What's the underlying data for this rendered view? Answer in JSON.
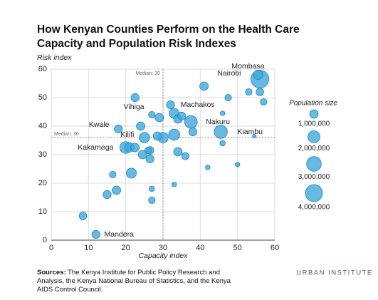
{
  "chart_data": {
    "type": "bubble",
    "title": [
      "How Kenyan Counties Perform on the Health Care",
      "Capacity and Population Risk Indexes"
    ],
    "x_label": "Capacity index",
    "y_label": "Risk index",
    "xlim": [
      0,
      60
    ],
    "xticks": [
      0,
      10,
      20,
      30,
      40,
      50,
      60
    ],
    "ylim": [
      0,
      60
    ],
    "yticks": [
      0,
      10,
      20,
      30,
      40,
      50,
      60
    ],
    "grid": true,
    "median_x": {
      "value": 30,
      "label": "Median: 30"
    },
    "median_y": {
      "value": 36,
      "label": "Median: 36"
    },
    "series": [
      {
        "color": "#3ea8dc",
        "x": [
          55.5,
          56,
          57,
          53,
          56,
          47.5,
          41,
          22.5,
          32,
          33,
          35,
          34,
          27,
          29,
          37.5,
          45.5,
          46,
          38,
          24,
          18,
          25,
          28.5,
          30,
          33,
          54.5,
          46,
          20,
          21,
          22.5,
          26,
          26.5,
          24.5,
          26.5,
          34,
          36,
          42,
          50,
          21.5,
          16.5,
          33,
          27,
          17.5,
          15,
          27,
          8.5,
          12
        ],
        "values": [
          58,
          56.5,
          48.5,
          52,
          52,
          50,
          54,
          50,
          47.5,
          44.5,
          43.5,
          42.5,
          44,
          43,
          41.5,
          38,
          44.5,
          38,
          40,
          39,
          36,
          36.5,
          36,
          37,
          36.5,
          34,
          32.5,
          32.5,
          32.5,
          31.5,
          31.5,
          30,
          28.5,
          31,
          29.5,
          25.5,
          26.5,
          23.5,
          23,
          19.5,
          18,
          17.5,
          16,
          14,
          8.5,
          2
        ],
        "sizes": [
          1200000,
          4400000,
          600000,
          600000,
          800000,
          600000,
          1000000,
          900000,
          900000,
          1400000,
          900000,
          1000000,
          600000,
          1000000,
          2200000,
          2400000,
          300000,
          900000,
          1000000,
          900000,
          1500000,
          1000000,
          1500000,
          1700000,
          200000,
          400000,
          1900000,
          1200000,
          1000000,
          600000,
          800000,
          1000000,
          900000,
          1000000,
          700000,
          300000,
          300000,
          1400000,
          600000,
          300000,
          400000,
          1000000,
          900000,
          600000,
          800000,
          900000
        ],
        "labels": [
          "Mombasa",
          "Nairobi",
          null,
          null,
          null,
          null,
          null,
          null,
          null,
          "Machakos",
          null,
          null,
          "Vihiga",
          null,
          "Nakuru",
          "Kiambu",
          null,
          null,
          null,
          "Kwale",
          "Kilifi",
          null,
          null,
          null,
          null,
          null,
          "Kakamega",
          null,
          null,
          null,
          null,
          null,
          null,
          null,
          null,
          null,
          null,
          null,
          null,
          null,
          null,
          null,
          null,
          null,
          null,
          "Mandera"
        ]
      }
    ],
    "size_legend": {
      "title": "Population size",
      "values": [
        {
          "value": 1000000,
          "label": "1,000,000"
        },
        {
          "value": 2000000,
          "label": "2,000,000"
        },
        {
          "value": 3000000,
          "label": "3,000,000"
        },
        {
          "value": 4000000,
          "label": "4,000,000"
        }
      ]
    },
    "sources_label": "Sources:",
    "sources_text": "The Kenya Institute for Public Policy Research and Analysis, the Kenya National Bureau of Statistics, and the Kenya AIDS Control Council.",
    "brand": "URBAN INSTITUTE"
  }
}
